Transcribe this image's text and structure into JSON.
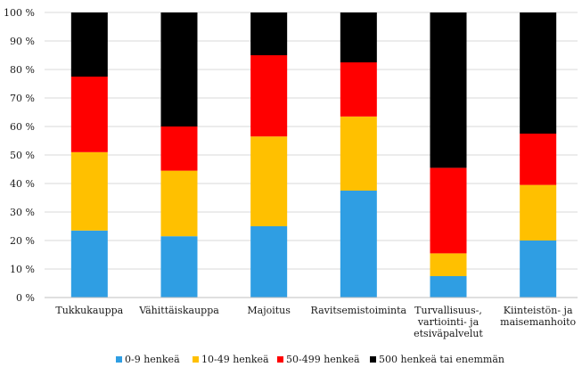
{
  "chart_data": {
    "type": "bar",
    "stacked": true,
    "categories": [
      [
        "Tukkukauppa"
      ],
      [
        "Vähittäiskauppa"
      ],
      [
        "Majoitus"
      ],
      [
        "Ravitsemistoiminta"
      ],
      [
        "Turvallisuus-,",
        "vartiointi- ja",
        "etsiväpalvelut"
      ],
      [
        "Kiinteistön- ja",
        "maisemanhoito"
      ]
    ],
    "series": [
      {
        "name": "0-9 henkeä",
        "color": "#2f9ee3",
        "values": [
          23.5,
          21.5,
          25,
          37.5,
          7.5,
          20
        ]
      },
      {
        "name": "10-49 henkeä",
        "color": "#ffc000",
        "values": [
          27.5,
          23,
          31.5,
          26,
          8,
          19.5
        ]
      },
      {
        "name": "50-499 henkeä",
        "color": "#ff0000",
        "values": [
          26.5,
          15.5,
          28.5,
          19,
          30,
          18
        ]
      },
      {
        "name": "500 henkeä tai enemmän",
        "color": "#000000",
        "values": [
          22.5,
          40,
          15,
          17.5,
          54.5,
          42.5
        ]
      }
    ],
    "yticks": [
      "0 %",
      "10 %",
      "20 %",
      "30 %",
      "40 %",
      "50 %",
      "60 %",
      "70 %",
      "80 %",
      "90 %",
      "100 %"
    ],
    "ylim": [
      0,
      100
    ],
    "grid": true,
    "legend_position": "bottom"
  }
}
